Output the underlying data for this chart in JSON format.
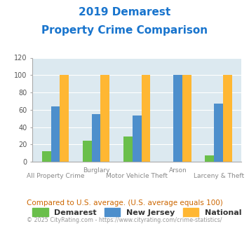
{
  "title_line1": "2019 Demarest",
  "title_line2": "Property Crime Comparison",
  "title_color": "#1874cd",
  "categories": [
    "All Property Crime",
    "Burglary",
    "Motor Vehicle Theft",
    "Arson",
    "Larceny & Theft"
  ],
  "demarest": [
    12,
    24,
    29,
    0,
    7
  ],
  "new_jersey": [
    64,
    55,
    53,
    100,
    67
  ],
  "national": [
    100,
    100,
    100,
    100,
    100
  ],
  "demarest_color": "#6abf4b",
  "nj_color": "#4d8fcc",
  "national_color": "#ffb733",
  "ylim": [
    0,
    120
  ],
  "yticks": [
    0,
    20,
    40,
    60,
    80,
    100,
    120
  ],
  "plot_bg_color": "#dce9f0",
  "legend_labels": [
    "Demarest",
    "New Jersey",
    "National"
  ],
  "footnote1": "Compared to U.S. average. (U.S. average equals 100)",
  "footnote2": "© 2025 CityRating.com - https://www.cityrating.com/crime-statistics/",
  "footnote1_color": "#cc6600",
  "footnote2_color": "#999999",
  "bar_width": 0.22,
  "row1_indices": [
    1,
    3
  ],
  "row1_labels": [
    "Burglary",
    "Arson"
  ],
  "row2_indices": [
    0,
    2,
    4
  ],
  "row2_labels": [
    "All Property Crime",
    "Motor Vehicle Theft",
    "Larceny & Theft"
  ]
}
